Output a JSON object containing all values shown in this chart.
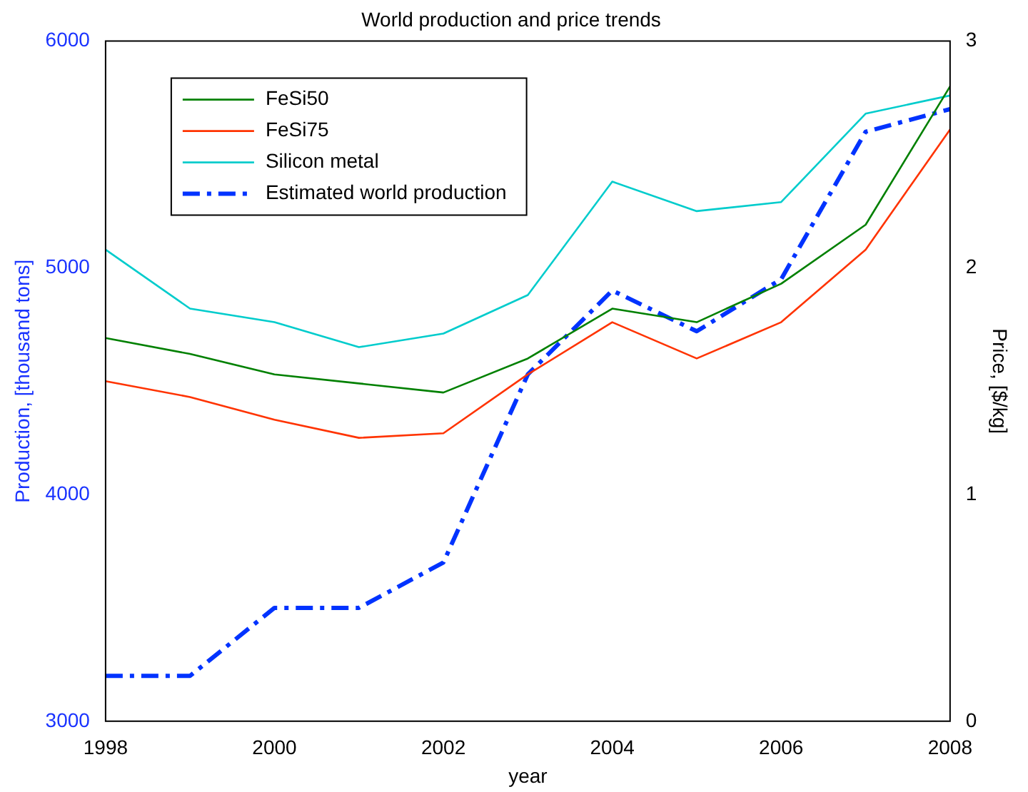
{
  "chart_data": {
    "type": "line",
    "title": "World production and price trends",
    "xlabel": "year",
    "ylabel": "Production, [thousand tons]",
    "y2label": "Price, [$/kg]",
    "x": [
      1998,
      1999,
      2000,
      2001,
      2002,
      2003,
      2004,
      2005,
      2006,
      2007,
      2008
    ],
    "xlim": [
      1998,
      2008
    ],
    "xticks": [
      1998,
      2000,
      2002,
      2004,
      2006,
      2008
    ],
    "ylim": [
      3000,
      6000
    ],
    "yticks": [
      3000,
      4000,
      5000,
      6000
    ],
    "y2lim": [
      0,
      3
    ],
    "y2ticks": [
      0,
      1,
      2,
      3
    ],
    "grid": false,
    "legend": "top left",
    "marker": "none",
    "series": [
      {
        "name": "FeSi50",
        "color": "#008000",
        "axis": "y2",
        "line_style": "solid",
        "values": [
          1.69,
          1.62,
          1.53,
          1.49,
          1.45,
          1.6,
          1.82,
          1.76,
          1.93,
          2.19,
          2.8
        ]
      },
      {
        "name": "FeSi75",
        "color": "#ff3300",
        "axis": "y2",
        "line_style": "solid",
        "values": [
          1.5,
          1.43,
          1.33,
          1.25,
          1.27,
          1.53,
          1.76,
          1.6,
          1.76,
          2.08,
          2.61
        ]
      },
      {
        "name": "Silicon metal",
        "color": "#00cccc",
        "axis": "y2",
        "line_style": "solid",
        "values": [
          2.08,
          1.82,
          1.76,
          1.65,
          1.71,
          1.88,
          2.38,
          2.25,
          2.29,
          2.68,
          2.76
        ]
      },
      {
        "name": "Estimated world production",
        "color": "#0033ff",
        "axis": "y",
        "line_style": "dashed",
        "values": [
          3200,
          3200,
          3500,
          3500,
          3700,
          4530,
          4900,
          4720,
          4950,
          5600,
          5700
        ]
      }
    ]
  }
}
